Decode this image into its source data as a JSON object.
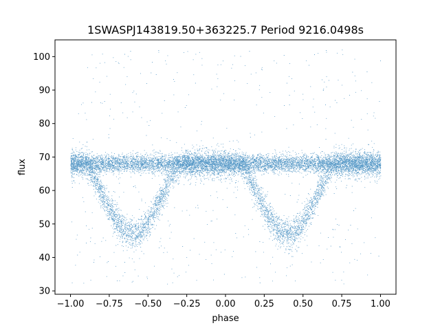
{
  "chart_data": {
    "type": "scatter",
    "title": "1SWASPJ143819.50+363225.7 Period 9216.0498s",
    "xlabel": "phase",
    "ylabel": "flux",
    "xlim": [
      -1.1,
      1.1
    ],
    "ylim": [
      29,
      105
    ],
    "xticks": [
      -1.0,
      -0.75,
      -0.5,
      -0.25,
      0.0,
      0.25,
      0.5,
      0.75,
      1.0
    ],
    "xtick_labels": [
      "−1.00",
      "−0.75",
      "−0.50",
      "−0.25",
      "0.00",
      "0.25",
      "0.50",
      "0.75",
      "1.00"
    ],
    "yticks": [
      30,
      40,
      50,
      60,
      70,
      80,
      90,
      100
    ],
    "ytick_labels": [
      "30",
      "40",
      "50",
      "60",
      "70",
      "80",
      "90",
      "100"
    ],
    "grid": false,
    "marker_color": "#1f77b4",
    "series": [
      {
        "phase_range": [
          -1.0,
          1.0
        ],
        "baseline_flux": 68,
        "eclipse_centers": [
          -0.6,
          0.4
        ],
        "eclipse_minimum_flux": 47,
        "eclipse_half_width": 0.3,
        "outlier_flux_range": [
          32,
          102
        ],
        "points_approx": 14000
      }
    ]
  }
}
